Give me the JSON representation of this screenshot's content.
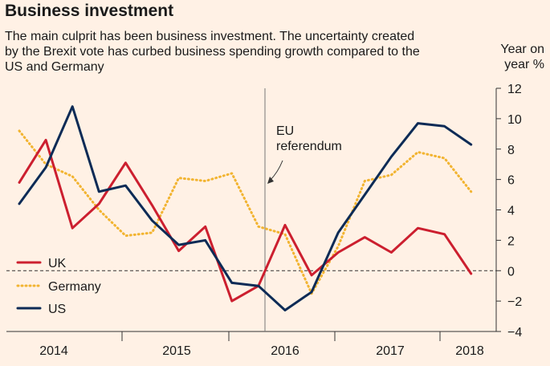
{
  "title": "Business investment",
  "subtitle": "The main culprit has been business investment. The uncertainty created by the Brexit vote has curbed business spending growth compared to the US and Germany",
  "unit_label": "Year on year %",
  "chart_data": {
    "type": "line",
    "x": [
      "2014-Q1",
      "2014-Q2",
      "2014-Q3",
      "2014-Q4",
      "2015-Q1",
      "2015-Q2",
      "2015-Q3",
      "2015-Q4",
      "2016-Q1",
      "2016-Q2",
      "2016-Q3",
      "2016-Q4",
      "2017-Q1",
      "2017-Q2",
      "2017-Q3",
      "2017-Q4",
      "2018-Q1",
      "2018-Q2"
    ],
    "x_ticks": [
      "2014",
      "2015",
      "2016",
      "2017",
      "2018"
    ],
    "y_ticks": [
      "12",
      "10",
      "8",
      "6",
      "4",
      "2",
      "0",
      "-2",
      "-4"
    ],
    "ylim": [
      -4,
      12
    ],
    "ylabel": "Year on year %",
    "legend_position": "bottom-left",
    "grid": false,
    "zero_line": "dashed",
    "annotation": {
      "text_lines": [
        "EU",
        "referendum"
      ],
      "at": "2016-Q2"
    },
    "series": [
      {
        "name": "UK",
        "color": "#cc1f2f",
        "style": "solid",
        "values": [
          5.8,
          8.6,
          2.8,
          4.4,
          7.1,
          4.3,
          1.3,
          2.9,
          -2.0,
          -1.0,
          3.0,
          -0.3,
          1.2,
          2.2,
          1.2,
          2.8,
          2.4,
          -0.2
        ]
      },
      {
        "name": "Germany",
        "color": "#f2b431",
        "style": "dotted",
        "values": [
          9.2,
          7.0,
          6.2,
          4.0,
          2.3,
          2.5,
          6.1,
          5.9,
          6.4,
          2.9,
          2.4,
          -1.5,
          1.6,
          5.9,
          6.3,
          7.8,
          7.4,
          5.2
        ]
      },
      {
        "name": "US",
        "color": "#0d2b56",
        "style": "solid",
        "values": [
          4.4,
          6.8,
          10.8,
          5.2,
          5.6,
          3.3,
          1.7,
          2.0,
          -0.8,
          -1.0,
          -2.6,
          -1.4,
          2.5,
          5.0,
          7.5,
          9.7,
          9.5,
          8.3
        ]
      }
    ]
  }
}
